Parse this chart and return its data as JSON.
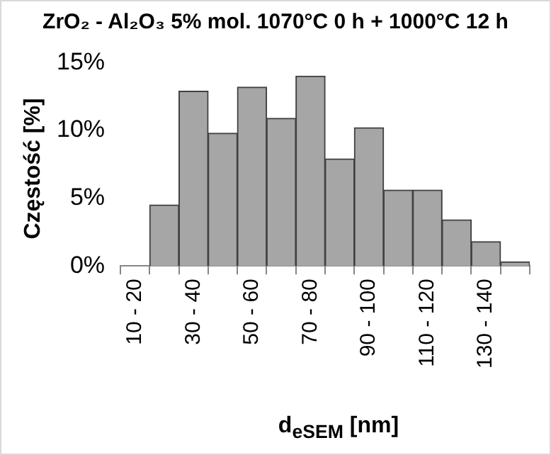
{
  "chart_data": {
    "type": "bar",
    "title": "ZrO₂ - Al₂O₃ 5% mol. 1070°C 0 h + 1000°C 12 h",
    "xlabel": "d$_{eSEM}$ [nm]",
    "ylabel": "Częstość [%]",
    "categories": [
      "10 - 20",
      null,
      "30 - 40",
      null,
      "50 - 60",
      null,
      "70 - 80",
      null,
      "90 - 100",
      null,
      "110 - 120",
      null,
      "130 - 140",
      null
    ],
    "values": [
      0,
      4.5,
      12.9,
      9.8,
      13.2,
      10.9,
      14.0,
      7.9,
      10.2,
      5.6,
      5.6,
      3.4,
      1.8,
      0.3
    ],
    "color": "#a6a6a6",
    "ylim": [
      0,
      15
    ],
    "yticks": [
      {
        "value": 0,
        "label": "0%"
      },
      {
        "value": 5,
        "label": "5%"
      },
      {
        "value": 10,
        "label": "10%"
      },
      {
        "value": 15,
        "label": "15%"
      }
    ]
  }
}
